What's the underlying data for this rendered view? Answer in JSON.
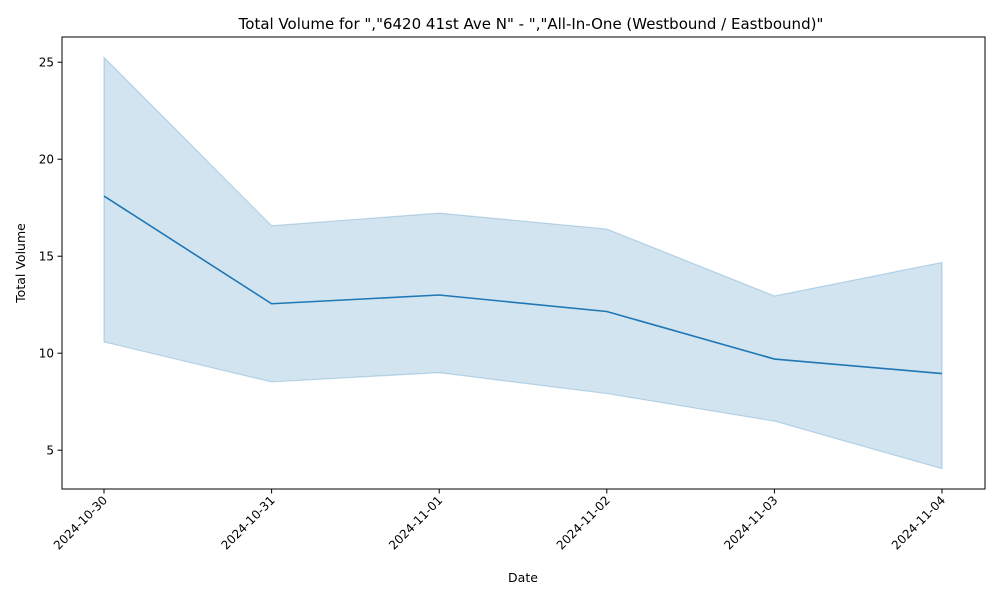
{
  "chart_data": {
    "type": "line",
    "title": "Total Volume for \",\"6420 41st Ave N\" - \",\"All-In-One (Westbound / Eastbound)\"",
    "xlabel": "Date",
    "ylabel": "Total Volume",
    "x": [
      "2024-10-30",
      "2024-10-31",
      "2024-11-01",
      "2024-11-02",
      "2024-11-03",
      "2024-11-04"
    ],
    "series": [
      {
        "values": [
          18.1,
          12.55,
          13.0,
          12.15,
          9.7,
          8.95
        ],
        "band_upper": [
          25.25,
          16.57,
          17.22,
          16.4,
          12.95,
          14.68
        ],
        "band_lower": [
          10.58,
          8.52,
          9.0,
          7.92,
          6.5,
          4.05
        ]
      }
    ],
    "ylim": [
      3.0,
      26.3
    ],
    "yticks": [
      5,
      10,
      15,
      20,
      25
    ],
    "grid": false,
    "legend": "none",
    "colors": {
      "line": "#1f77b4",
      "band": "#1f77b4"
    }
  }
}
